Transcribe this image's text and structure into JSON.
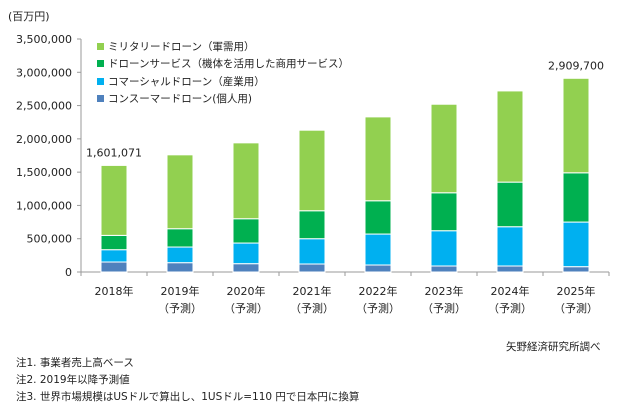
{
  "chart_data": {
    "type": "bar",
    "stacked": true,
    "unit_label": "(百万円)",
    "categories": [
      {
        "year": "2018年",
        "sub": ""
      },
      {
        "year": "2019年",
        "sub": "（予測）"
      },
      {
        "year": "2020年",
        "sub": "（予測）"
      },
      {
        "year": "2021年",
        "sub": "（予測）"
      },
      {
        "year": "2022年",
        "sub": "（予測）"
      },
      {
        "year": "2023年",
        "sub": "（予測）"
      },
      {
        "year": "2024年",
        "sub": "（予測）"
      },
      {
        "year": "2025年",
        "sub": "（予測）"
      }
    ],
    "series": [
      {
        "name": "コンスーマードローン(個人用)",
        "color": "#4f81bd",
        "values": [
          150000,
          140000,
          125000,
          120000,
          105000,
          90000,
          90000,
          80000
        ]
      },
      {
        "name": "コマーシャルドローン（産業用）",
        "color": "#00b0f0",
        "values": [
          185000,
          235000,
          310000,
          380000,
          465000,
          530000,
          590000,
          670000
        ]
      },
      {
        "name": "ドローンサービス（機体を活用した商用サービス）",
        "color": "#00b050",
        "values": [
          215000,
          275000,
          365000,
          420000,
          500000,
          570000,
          670000,
          740000
        ]
      },
      {
        "name": "ミリタリードローン（軍需用）",
        "color": "#92d050",
        "values": [
          1051071,
          1110000,
          1140000,
          1210000,
          1260000,
          1330000,
          1370000,
          1419700
        ]
      }
    ],
    "totals": [
      1601071,
      1760000,
      1940000,
      2130000,
      2330000,
      2520000,
      2720000,
      2909700
    ],
    "data_labels": [
      {
        "category_index": 0,
        "text": "1,601,071"
      },
      {
        "category_index": 7,
        "text": "2,909,700"
      }
    ],
    "ylim": [
      0,
      3500000
    ],
    "y_ticks": [
      {
        "value": 0,
        "label": "0"
      },
      {
        "value": 500000,
        "label": "500,000"
      },
      {
        "value": 1000000,
        "label": "1,000,000"
      },
      {
        "value": 1500000,
        "label": "1,500,000"
      },
      {
        "value": 2000000,
        "label": "2,000,000"
      },
      {
        "value": 2500000,
        "label": "2,500,000"
      },
      {
        "value": 3000000,
        "label": "3,000,000"
      },
      {
        "value": 3500000,
        "label": "3,500,000"
      }
    ],
    "grid": false,
    "legend_position": "top-left",
    "legend_order": [
      3,
      2,
      1,
      0
    ]
  },
  "notes": [
    "注1. 事業者売上高ベース",
    "注2. 2019年以降予測値",
    "注3. 世界市場規模はUSドルで算出し、1USドル=110 円で日本円に換算"
  ],
  "source": "矢野経済研究所調べ"
}
